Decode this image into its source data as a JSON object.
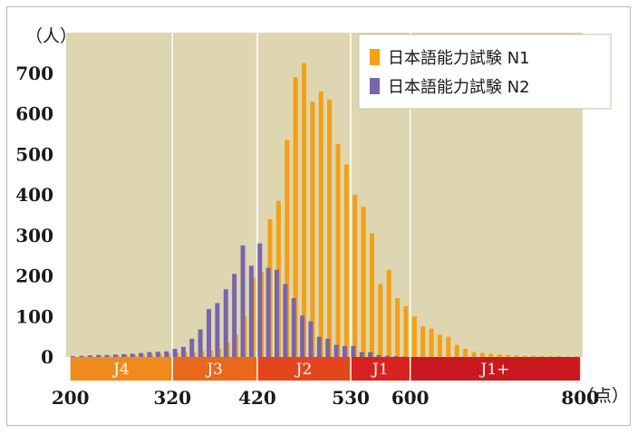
{
  "chart_data": {
    "type": "bar",
    "ylabel": "（人）",
    "xlabel": "（点）",
    "x_tick_labels": [
      "200",
      "320",
      "420",
      "530",
      "600",
      "800"
    ],
    "x_ticks": [
      200,
      320,
      420,
      530,
      600,
      800
    ],
    "xlim": [
      195,
      803
    ],
    "ylim": [
      0,
      800
    ],
    "y_ticks": [
      0,
      100,
      200,
      300,
      400,
      500,
      600,
      700
    ],
    "y_tick_labels": [
      "0",
      "100",
      "200",
      "300",
      "400",
      "500",
      "600",
      "700"
    ],
    "grid": "vertical lines at 320, 420, 530, 600",
    "legend_position": "top-right",
    "series": [
      {
        "name": "日本語能力試験 N1",
        "color": "#f4a015",
        "x": [
          205,
          215,
          225,
          235,
          245,
          255,
          265,
          275,
          285,
          295,
          305,
          315,
          325,
          335,
          345,
          355,
          365,
          375,
          385,
          395,
          405,
          415,
          425,
          435,
          445,
          455,
          465,
          475,
          485,
          495,
          505,
          515,
          525,
          535,
          545,
          555,
          565,
          575,
          585,
          595,
          605,
          615,
          625,
          635,
          645,
          655,
          665,
          675,
          685,
          695,
          705,
          715,
          725,
          735,
          745,
          755,
          765,
          775,
          785,
          795
        ],
        "values": [
          0,
          1,
          2,
          3,
          3,
          4,
          5,
          6,
          6,
          7,
          8,
          9,
          10,
          11,
          12,
          14,
          16,
          20,
          35,
          55,
          100,
          195,
          210,
          340,
          385,
          535,
          690,
          725,
          630,
          655,
          635,
          525,
          475,
          400,
          370,
          305,
          180,
          215,
          145,
          125,
          100,
          75,
          70,
          55,
          50,
          30,
          20,
          12,
          10,
          8,
          6,
          5,
          4,
          3,
          3,
          2,
          2,
          2,
          1,
          1
        ]
      },
      {
        "name": "日本語能力試験 N2",
        "color": "#7865ab",
        "x": [
          203,
          213,
          223,
          233,
          243,
          253,
          263,
          273,
          283,
          293,
          303,
          313,
          323,
          333,
          343,
          353,
          363,
          373,
          383,
          393,
          403,
          413,
          423,
          433,
          443,
          453,
          463,
          473,
          483,
          493,
          503,
          513,
          523,
          533,
          543,
          553,
          563,
          573,
          583,
          593
        ],
        "values": [
          2,
          3,
          4,
          5,
          5,
          6,
          7,
          8,
          10,
          12,
          13,
          14,
          20,
          25,
          45,
          68,
          118,
          133,
          167,
          205,
          275,
          225,
          280,
          220,
          215,
          180,
          145,
          102,
          88,
          50,
          45,
          30,
          27,
          27,
          12,
          12,
          5,
          3,
          2,
          1
        ]
      }
    ],
    "bands": [
      {
        "label": "J4",
        "from": 200,
        "to": 320,
        "color": "#f08a1e"
      },
      {
        "label": "J3",
        "from": 320,
        "to": 420,
        "color": "#e9681b"
      },
      {
        "label": "J2",
        "from": 420,
        "to": 530,
        "color": "#e3461c"
      },
      {
        "label": "J1",
        "from": 530,
        "to": 600,
        "color": "#d8221f"
      },
      {
        "label": "J1+",
        "from": 600,
        "to": 800,
        "color": "#c9191f"
      }
    ]
  }
}
